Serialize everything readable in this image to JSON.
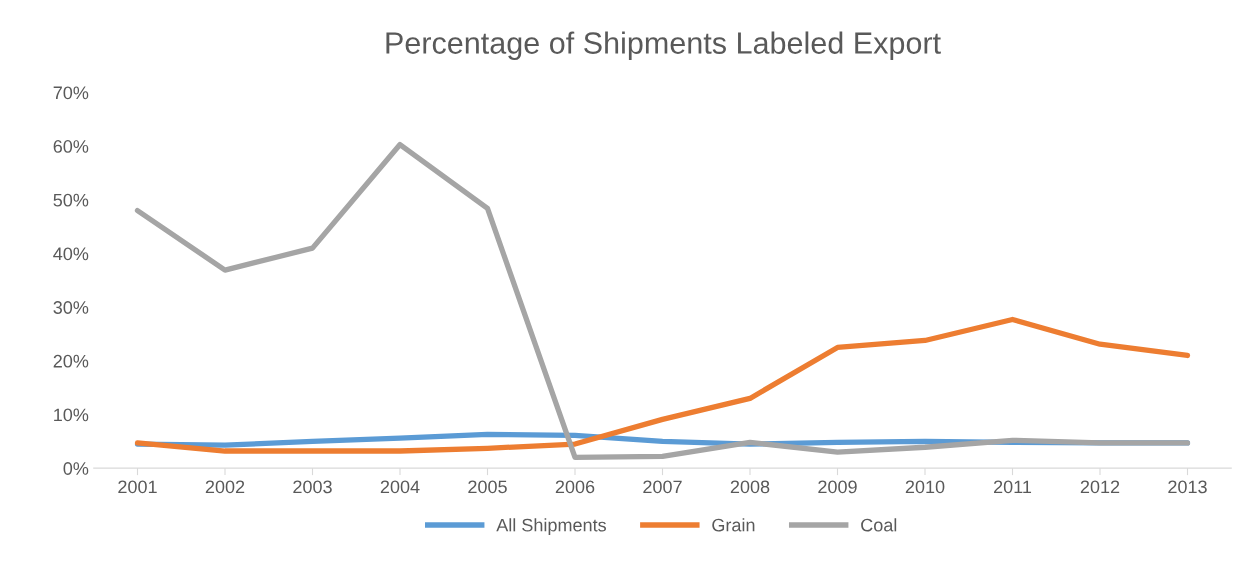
{
  "chart_data": {
    "type": "line",
    "title": "Percentage of Shipments Labeled Export",
    "categories": [
      "2001",
      "2002",
      "2003",
      "2004",
      "2005",
      "2006",
      "2007",
      "2008",
      "2009",
      "2010",
      "2011",
      "2012",
      "2013"
    ],
    "series": [
      {
        "name": "All Shipments",
        "color": "#5b9bd5",
        "values": [
          4.5,
          4.3,
          5.0,
          5.6,
          6.3,
          6.1,
          5.0,
          4.5,
          4.8,
          5.0,
          4.8,
          4.7,
          4.7
        ]
      },
      {
        "name": "Grain",
        "color": "#ed7d31",
        "values": [
          4.7,
          3.2,
          3.2,
          3.2,
          3.7,
          4.5,
          9.1,
          13.0,
          22.5,
          23.8,
          27.7,
          23.1,
          21.0
        ]
      },
      {
        "name": "Coal",
        "color": "#a5a5a5",
        "values": [
          48.0,
          36.9,
          41.0,
          60.3,
          48.4,
          2.0,
          2.2,
          4.8,
          3.0,
          3.9,
          5.2,
          4.7,
          4.7
        ]
      }
    ],
    "ylim": [
      0,
      70
    ],
    "yticks": [
      {
        "value": 0,
        "label": "0%"
      },
      {
        "value": 10,
        "label": "10%"
      },
      {
        "value": 20,
        "label": "20%"
      },
      {
        "value": 30,
        "label": "30%"
      },
      {
        "value": 40,
        "label": "40%"
      },
      {
        "value": 50,
        "label": "50%"
      },
      {
        "value": 60,
        "label": "60%"
      },
      {
        "value": 70,
        "label": "70%"
      }
    ],
    "grid": false,
    "legend": "bottom",
    "marker": "none",
    "line_style": "solid"
  }
}
